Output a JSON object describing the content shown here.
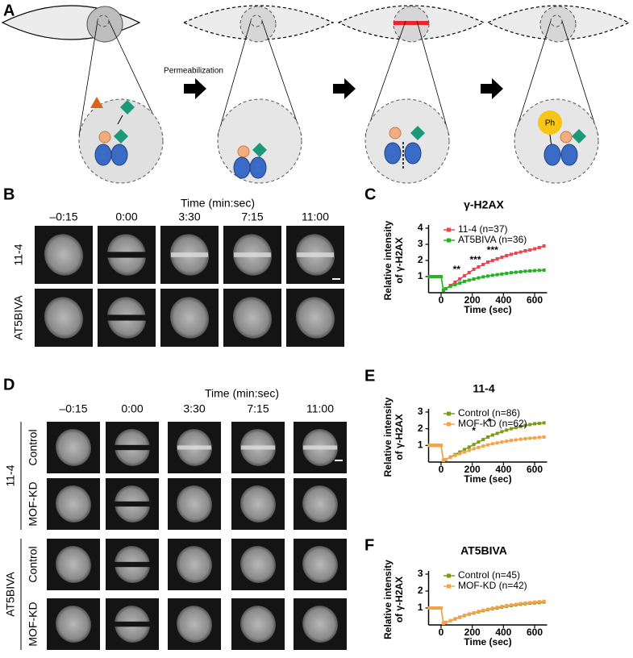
{
  "panel_labels": [
    "A",
    "B",
    "C",
    "D",
    "E",
    "F"
  ],
  "panel_a": {
    "step_label": "Permeabilization",
    "marker_label": "Ph"
  },
  "panel_b": {
    "time_heading": "Time (min:sec)",
    "times": [
      "–0:15",
      "0:00",
      "3:30",
      "7:15",
      "11:00"
    ],
    "rows": [
      "11-4",
      "AT5BIVA"
    ]
  },
  "panel_d": {
    "time_heading": "Time (min:sec)",
    "times": [
      "–0:15",
      "0:00",
      "3:30",
      "7:15",
      "11:00"
    ],
    "groups": [
      {
        "name": "11-4",
        "rows": [
          "Control",
          "MOF-KD"
        ]
      },
      {
        "name": "AT5BIVA",
        "rows": [
          "Control",
          "MOF-KD"
        ]
      }
    ]
  },
  "chart_data": [
    {
      "type": "line",
      "title": "γ-H2AX",
      "xlabel": "Time (sec)",
      "ylabel": [
        "Relative intensity",
        "of γ-H2AX"
      ],
      "x": [
        -75,
        -60,
        -45,
        -30,
        -15,
        0,
        15,
        30,
        60,
        90,
        120,
        150,
        180,
        210,
        240,
        270,
        300,
        330,
        360,
        390,
        420,
        450,
        480,
        510,
        540,
        570,
        600,
        630,
        660
      ],
      "xlim": [
        -80,
        680
      ],
      "xticks": [
        0,
        200,
        400,
        600
      ],
      "ylim": [
        0,
        4
      ],
      "yticks": [
        1,
        2,
        3,
        4
      ],
      "legend": "upper left",
      "annotations": [
        "**",
        "***",
        "***"
      ],
      "series": [
        {
          "name": "11-4 (n=37)",
          "color": "#e8474f",
          "values": [
            1,
            1,
            1,
            1,
            1,
            1,
            0.15,
            0.25,
            0.45,
            0.65,
            0.85,
            1.05,
            1.25,
            1.45,
            1.6,
            1.75,
            1.9,
            2.0,
            2.1,
            2.2,
            2.3,
            2.38,
            2.45,
            2.52,
            2.6,
            2.65,
            2.72,
            2.8,
            2.9
          ]
        },
        {
          "name": "AT5BIVA (n=36)",
          "color": "#22b522",
          "values": [
            1,
            1,
            1,
            1,
            1,
            1,
            0.15,
            0.25,
            0.4,
            0.5,
            0.6,
            0.7,
            0.78,
            0.85,
            0.92,
            0.98,
            1.03,
            1.08,
            1.12,
            1.16,
            1.2,
            1.24,
            1.27,
            1.3,
            1.33,
            1.35,
            1.37,
            1.39,
            1.4
          ]
        }
      ]
    },
    {
      "type": "line",
      "title": "11-4",
      "xlabel": "Time (sec)",
      "ylabel": [
        "Relative intensity",
        "of γ-H2AX"
      ],
      "x": [
        -75,
        -60,
        -45,
        -30,
        -15,
        0,
        15,
        30,
        60,
        90,
        120,
        150,
        180,
        210,
        240,
        270,
        300,
        330,
        360,
        390,
        420,
        450,
        480,
        510,
        540,
        570,
        600,
        630,
        660
      ],
      "xlim": [
        -80,
        680
      ],
      "xticks": [
        0,
        200,
        400,
        600
      ],
      "ylim": [
        0,
        3
      ],
      "yticks": [
        1,
        2,
        3
      ],
      "legend": "upper left",
      "annotations": [
        "*",
        "*"
      ],
      "series": [
        {
          "name": "Control (n=86)",
          "color": "#7a9a1a",
          "values": [
            1,
            1,
            1,
            1,
            1,
            1,
            0.1,
            0.15,
            0.3,
            0.45,
            0.6,
            0.75,
            0.9,
            1.05,
            1.2,
            1.35,
            1.5,
            1.62,
            1.72,
            1.82,
            1.92,
            2.0,
            2.07,
            2.13,
            2.2,
            2.25,
            2.3,
            2.32,
            2.35
          ]
        },
        {
          "name": "MOF-KD (n=62)",
          "color": "#f5a34a",
          "values": [
            1,
            1,
            1,
            1,
            1,
            1,
            0.1,
            0.15,
            0.28,
            0.4,
            0.5,
            0.6,
            0.7,
            0.8,
            0.88,
            0.96,
            1.03,
            1.1,
            1.15,
            1.2,
            1.25,
            1.3,
            1.33,
            1.37,
            1.4,
            1.43,
            1.45,
            1.48,
            1.5
          ]
        }
      ]
    },
    {
      "type": "line",
      "title": "AT5BIVA",
      "xlabel": "Time (sec)",
      "ylabel": [
        "Relative intensity",
        "of γ-H2AX"
      ],
      "x": [
        -75,
        -60,
        -45,
        -30,
        -15,
        0,
        15,
        30,
        60,
        90,
        120,
        150,
        180,
        210,
        240,
        270,
        300,
        330,
        360,
        390,
        420,
        450,
        480,
        510,
        540,
        570,
        600,
        630,
        660
      ],
      "xlim": [
        -80,
        680
      ],
      "xticks": [
        0,
        200,
        400,
        600
      ],
      "ylim": [
        0,
        3
      ],
      "yticks": [
        1,
        2,
        3
      ],
      "legend": "upper left",
      "series": [
        {
          "name": "Control (n=45)",
          "color": "#7a9a1a",
          "values": [
            1,
            1,
            1,
            1,
            1,
            1,
            0.1,
            0.15,
            0.25,
            0.35,
            0.45,
            0.55,
            0.63,
            0.7,
            0.77,
            0.84,
            0.9,
            0.96,
            1.0,
            1.05,
            1.1,
            1.14,
            1.18,
            1.22,
            1.25,
            1.28,
            1.3,
            1.32,
            1.35
          ]
        },
        {
          "name": "MOF-KD (n=42)",
          "color": "#f5a34a",
          "values": [
            1,
            1,
            1,
            1,
            1,
            1,
            0.1,
            0.15,
            0.26,
            0.37,
            0.47,
            0.57,
            0.65,
            0.72,
            0.8,
            0.87,
            0.93,
            0.99,
            1.04,
            1.09,
            1.14,
            1.18,
            1.22,
            1.26,
            1.29,
            1.32,
            1.35,
            1.37,
            1.4
          ]
        }
      ]
    }
  ]
}
